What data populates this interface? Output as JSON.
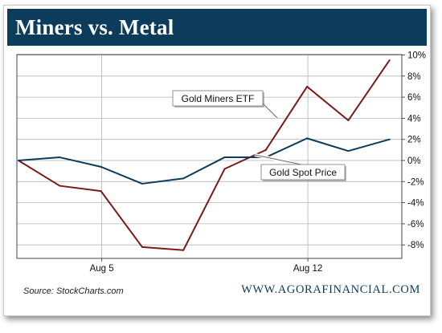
{
  "header": {
    "title": "Miners vs. Metal"
  },
  "footer": {
    "source": "Source: StockCharts.com",
    "brand": "WWW.AGORAFINANCIAL.COM"
  },
  "colors": {
    "header_bg": "#0c3b5c",
    "miners": "#7a1a1a",
    "spot": "#0c3b5c"
  },
  "chart_data": {
    "type": "line",
    "x_labels": [
      {
        "label": "Aug 5",
        "index": 2
      },
      {
        "label": "Aug 12",
        "index": 7
      }
    ],
    "ylim": [
      -9,
      10
    ],
    "yticks": [
      {
        "value": 10,
        "label": "10%"
      },
      {
        "value": 8,
        "label": "8%"
      },
      {
        "value": 6,
        "label": "6%"
      },
      {
        "value": 4,
        "label": "4%"
      },
      {
        "value": 2,
        "label": "2%"
      },
      {
        "value": 0,
        "label": "0%"
      },
      {
        "value": -2,
        "label": "-2%"
      },
      {
        "value": -4,
        "label": "-4%"
      },
      {
        "value": -6,
        "label": "-6%"
      },
      {
        "value": -8,
        "label": "-8%"
      }
    ],
    "grid": true,
    "series": [
      {
        "name": "Gold Miners ETF",
        "color": "#7a1a1a",
        "values": [
          0,
          -2.4,
          -2.9,
          -8.2,
          -8.5,
          -0.8,
          1.0,
          7.0,
          3.8,
          9.5
        ]
      },
      {
        "name": "Gold Spot Price",
        "color": "#0c3b5c",
        "values": [
          0,
          0.3,
          -0.6,
          -2.2,
          -1.7,
          0.3,
          0.3,
          2.1,
          0.9,
          2.0
        ]
      }
    ]
  }
}
